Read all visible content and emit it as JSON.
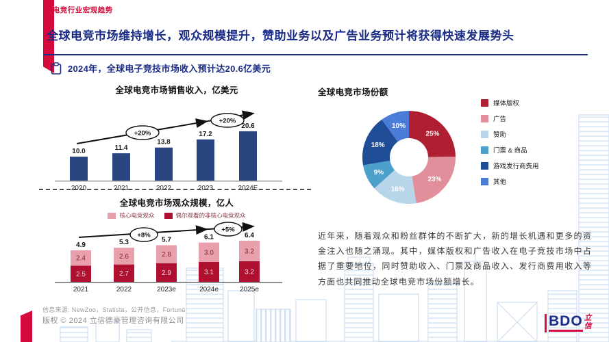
{
  "page": {
    "eyebrow_bullet": "•",
    "eyebrow": "电竞行业宏观趋势",
    "title": "全球电竞市场维持增长，观众规模提升，赞助业务以及广告业务预计将获得快速发展势头",
    "key_point": "2024年，全球电子竞技市场收入预计达20.6亿美元"
  },
  "colors": {
    "brand_red": "#D60A3C",
    "navy": "#1A2C86",
    "bar_navy": "#2A4480",
    "crimson": "#B01030",
    "pink": "#E8A0AC",
    "axis_gray": "#9a9a9a"
  },
  "chart_data": [
    {
      "type": "bar",
      "title": "全球电竞市场销售收入，亿美元",
      "categories": [
        "2020",
        "2021",
        "2022",
        "2023",
        "2024E"
      ],
      "values": [
        10.0,
        11.4,
        13.8,
        17.2,
        20.6
      ],
      "growth_badges": [
        "+20%",
        "+20%"
      ],
      "bar_color": "#2A4480",
      "xlabel": "",
      "ylabel": "亿美元",
      "ylim": [
        0,
        22
      ],
      "grid": false
    },
    {
      "type": "bar",
      "stacked": true,
      "title": "全球电竞市场观众规模，亿人",
      "categories": [
        "2021",
        "2022",
        "2023e",
        "2024e",
        "2025e"
      ],
      "series": [
        {
          "name": "偶尔观看的非核心电竞观众",
          "color": "#B01030",
          "values": [
            2.5,
            2.7,
            2.9,
            3.1,
            3.2
          ]
        },
        {
          "name": "核心电竞观众",
          "color": "#E8A0AC",
          "values": [
            2.4,
            2.6,
            2.8,
            3.0,
            3.2
          ]
        }
      ],
      "totals": [
        4.9,
        5.3,
        5.7,
        6.1,
        6.4
      ],
      "growth_badges": [
        "+8%",
        "+5%"
      ],
      "xlabel": "",
      "ylabel": "亿人",
      "ylim": [
        0,
        7
      ],
      "grid": false,
      "legend_position": "top"
    },
    {
      "type": "pie",
      "title": "全球电竞市场份额",
      "labels": [
        "媒体版权",
        "广告",
        "赞助",
        "门票 & 商品",
        "游戏发行商费用",
        "其他"
      ],
      "values": [
        25,
        23,
        16,
        9,
        18,
        10
      ],
      "value_labels": [
        "25%",
        "23%",
        "16%",
        "9%",
        "18%",
        "10%"
      ],
      "colors": [
        "#B01E32",
        "#E08F9B",
        "#B9D5EA",
        "#4BA0CC",
        "#1F4D96",
        "#4A7CD8"
      ],
      "donut": true,
      "legend_position": "right"
    }
  ],
  "analysis": "近年来，随着观众和粉丝群体的不断扩大，新的增长机遇和更多的资金注入也随之涌现。其中，媒体版权和广告收入在电子竞技市场中占据了重要地位，同时赞助收入、门票及商品收入、发行商费用收入等方面也共同推动全球电竞市场份额增长。",
  "footer": {
    "source": "信息来源: NewZoo，Statista，公开信息，Fortune",
    "copyright": "版权 © 2024 立信德豪管理咨询有限公司",
    "logo_text": "BDO",
    "logo_cn": [
      "立",
      "信"
    ]
  }
}
